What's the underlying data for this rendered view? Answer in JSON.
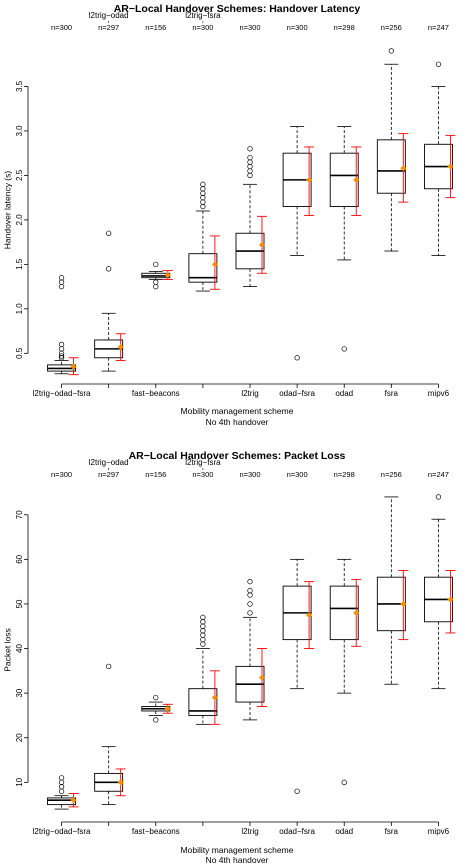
{
  "chart_data": [
    {
      "type": "box",
      "title": "AR−Local Handover Schemes: Handover Latency",
      "xlabel": "Mobility management scheme",
      "xlabel_sub": "No 4th handover",
      "ylabel": "Handover latency (s)",
      "ylim": [
        0.2,
        4.0
      ],
      "yticks": [
        0.5,
        1.0,
        1.5,
        2.0,
        2.5,
        3.0,
        3.5
      ],
      "ytick_labels": [
        "0.5",
        "1.0",
        "1.5",
        "2.0",
        "2.5",
        "3.0",
        "3.5"
      ],
      "grid": false,
      "mean_color": "#ff8c00",
      "ci_color": "#ff0000",
      "categories": [
        {
          "name": "l2trig−odad−fsra",
          "n": "n=300",
          "top_label": "",
          "whislo": 0.27,
          "q1": 0.3,
          "med": 0.33,
          "q3": 0.37,
          "whishi": 0.42,
          "mean": 0.35,
          "ci_lo": 0.26,
          "ci_hi": 0.45,
          "outliers": [
            1.25,
            1.3,
            1.35,
            0.6,
            0.55,
            0.5,
            0.47,
            0.45
          ]
        },
        {
          "name": "",
          "n": "n=297",
          "top_label": "l2trig−odad",
          "whislo": 0.3,
          "q1": 0.45,
          "med": 0.55,
          "q3": 0.65,
          "whishi": 0.95,
          "mean": 0.57,
          "ci_lo": 0.42,
          "ci_hi": 0.72,
          "outliers": [
            1.45,
            1.85
          ]
        },
        {
          "name": "fast−beacons",
          "n": "n=156",
          "top_label": "",
          "whislo": 1.33,
          "q1": 1.35,
          "med": 1.37,
          "q3": 1.4,
          "whishi": 1.42,
          "mean": 1.38,
          "ci_lo": 1.33,
          "ci_hi": 1.43,
          "outliers": [
            1.25,
            1.3,
            1.5
          ]
        },
        {
          "name": "",
          "n": "n=300",
          "top_label": "l2trig−fsra",
          "whislo": 1.2,
          "q1": 1.3,
          "med": 1.35,
          "q3": 1.62,
          "whishi": 2.1,
          "mean": 1.5,
          "ci_lo": 1.22,
          "ci_hi": 1.82,
          "outliers": [
            2.15,
            2.2,
            2.25,
            2.3,
            2.35,
            2.4
          ]
        },
        {
          "name": "l2trig",
          "n": "n=300",
          "top_label": "",
          "whislo": 1.25,
          "q1": 1.45,
          "med": 1.65,
          "q3": 1.85,
          "whishi": 2.4,
          "mean": 1.72,
          "ci_lo": 1.4,
          "ci_hi": 2.04,
          "outliers": [
            2.5,
            2.55,
            2.6,
            2.65,
            2.7,
            2.8
          ]
        },
        {
          "name": "odad−fsra",
          "n": "n=300",
          "top_label": "",
          "whislo": 1.6,
          "q1": 2.15,
          "med": 2.45,
          "q3": 2.75,
          "whishi": 3.05,
          "mean": 2.45,
          "ci_lo": 2.05,
          "ci_hi": 2.82,
          "outliers": [
            0.45
          ]
        },
        {
          "name": "odad",
          "n": "n=298",
          "top_label": "",
          "whislo": 1.55,
          "q1": 2.15,
          "med": 2.5,
          "q3": 2.75,
          "whishi": 3.05,
          "mean": 2.45,
          "ci_lo": 2.05,
          "ci_hi": 2.82,
          "outliers": [
            0.55
          ]
        },
        {
          "name": "fsra",
          "n": "n=256",
          "top_label": "",
          "whislo": 1.65,
          "q1": 2.3,
          "med": 2.55,
          "q3": 2.9,
          "whishi": 3.75,
          "mean": 2.58,
          "ci_lo": 2.2,
          "ci_hi": 2.97,
          "outliers": [
            3.9
          ]
        },
        {
          "name": "mipv6",
          "n": "n=247",
          "top_label": "",
          "whislo": 1.6,
          "q1": 2.35,
          "med": 2.6,
          "q3": 2.85,
          "whishi": 3.5,
          "mean": 2.6,
          "ci_lo": 2.25,
          "ci_hi": 2.95,
          "outliers": [
            3.75
          ]
        }
      ]
    },
    {
      "type": "box",
      "title": "AR−Local Handover Schemes: Packet Loss",
      "xlabel": "Mobility management scheme",
      "xlabel_sub": "No 4th handover",
      "ylabel": "Packet loss",
      "ylim": [
        2,
        76
      ],
      "yticks": [
        10,
        20,
        30,
        40,
        50,
        60,
        70
      ],
      "ytick_labels": [
        "10",
        "20",
        "30",
        "40",
        "50",
        "60",
        "70"
      ],
      "grid": false,
      "mean_color": "#ff8c00",
      "ci_color": "#ff0000",
      "categories": [
        {
          "name": "l2trig−odad−fsra",
          "n": "n=300",
          "top_label": "",
          "whislo": 4,
          "q1": 5,
          "med": 6,
          "q3": 6.5,
          "whishi": 7,
          "mean": 6,
          "ci_lo": 4.5,
          "ci_hi": 7.5,
          "outliers": [
            8,
            9,
            10,
            11
          ]
        },
        {
          "name": "",
          "n": "n=297",
          "top_label": "l2trig−odad",
          "whislo": 5,
          "q1": 8,
          "med": 10,
          "q3": 12,
          "whishi": 18,
          "mean": 10,
          "ci_lo": 7,
          "ci_hi": 13,
          "outliers": [
            36
          ]
        },
        {
          "name": "fast−beacons",
          "n": "n=156",
          "top_label": "",
          "whislo": 25,
          "q1": 26,
          "med": 26.5,
          "q3": 27,
          "whishi": 28,
          "mean": 26.5,
          "ci_lo": 25.5,
          "ci_hi": 27.5,
          "outliers": [
            24,
            29
          ]
        },
        {
          "name": "",
          "n": "n=300",
          "top_label": "l2trig−fsra",
          "whislo": 23,
          "q1": 25,
          "med": 26,
          "q3": 31,
          "whishi": 40,
          "mean": 29,
          "ci_lo": 23,
          "ci_hi": 35,
          "outliers": [
            41,
            42,
            43,
            44,
            45,
            46,
            47
          ]
        },
        {
          "name": "l2trig",
          "n": "n=300",
          "top_label": "",
          "whislo": 24,
          "q1": 28,
          "med": 32,
          "q3": 36,
          "whishi": 47,
          "mean": 33.5,
          "ci_lo": 27,
          "ci_hi": 40,
          "outliers": [
            48,
            50,
            52,
            53,
            55
          ]
        },
        {
          "name": "odad−fsra",
          "n": "n=300",
          "top_label": "",
          "whislo": 31,
          "q1": 42,
          "med": 48,
          "q3": 54,
          "whishi": 60,
          "mean": 47.5,
          "ci_lo": 40,
          "ci_hi": 55,
          "outliers": [
            8
          ]
        },
        {
          "name": "odad",
          "n": "n=298",
          "top_label": "",
          "whislo": 30,
          "q1": 42,
          "med": 49,
          "q3": 54,
          "whishi": 60,
          "mean": 48,
          "ci_lo": 40.5,
          "ci_hi": 55.5,
          "outliers": [
            10
          ]
        },
        {
          "name": "fsra",
          "n": "n=256",
          "top_label": "",
          "whislo": 32,
          "q1": 44,
          "med": 50,
          "q3": 56,
          "whishi": 74,
          "mean": 50,
          "ci_lo": 42,
          "ci_hi": 57.5,
          "outliers": []
        },
        {
          "name": "mipv6",
          "n": "n=247",
          "top_label": "",
          "whislo": 31,
          "q1": 46,
          "med": 51,
          "q3": 56,
          "whishi": 69,
          "mean": 51,
          "ci_lo": 43.5,
          "ci_hi": 57.5,
          "outliers": [
            74
          ]
        }
      ]
    }
  ]
}
